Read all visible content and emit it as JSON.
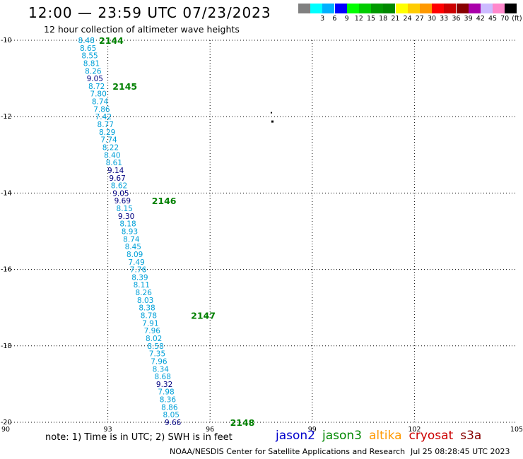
{
  "header": {
    "title": "12:00 — 23:59 UTC 07/23/2023",
    "subtitle": "12 hour collection of altimeter wave heights"
  },
  "legend": {
    "swatches": [
      {
        "color": "#808080",
        "label": ""
      },
      {
        "color": "#00ffff",
        "label": "3"
      },
      {
        "color": "#00b0ff",
        "label": "6"
      },
      {
        "color": "#0000ff",
        "label": "9"
      },
      {
        "color": "#00ff00",
        "label": "12"
      },
      {
        "color": "#00cc00",
        "label": "15"
      },
      {
        "color": "#009900",
        "label": "18"
      },
      {
        "color": "#008800",
        "label": "21"
      },
      {
        "color": "#ffff00",
        "label": "24"
      },
      {
        "color": "#ffcc00",
        "label": "27"
      },
      {
        "color": "#ff9900",
        "label": "30"
      },
      {
        "color": "#ff0000",
        "label": "33"
      },
      {
        "color": "#cc0000",
        "label": "36"
      },
      {
        "color": "#880000",
        "label": "39"
      },
      {
        "color": "#aa00aa",
        "label": "42"
      },
      {
        "color": "#ccbbff",
        "label": "45"
      },
      {
        "color": "#ff88cc",
        "label": "70"
      },
      {
        "color": "#000000",
        "label": "(ft)"
      }
    ]
  },
  "map": {
    "lon_range": [
      90,
      105
    ],
    "lat_range": [
      -20,
      -10
    ],
    "x_ticks": [
      "90",
      "93",
      "96",
      "99",
      "102",
      "105"
    ],
    "y_ticks": [
      {
        "lat": -10,
        "label": "-10"
      },
      {
        "lat": -12,
        "label": "-12"
      },
      {
        "lat": -14,
        "label": "-14"
      },
      {
        "lat": -16,
        "label": "-16"
      },
      {
        "lat": -18,
        "label": "-18"
      },
      {
        "lat": -20,
        "label": "-20"
      }
    ],
    "color_light": "#00a0d8",
    "color_dark": "#000080",
    "color_time": "#008000",
    "swh_readings": [
      {
        "lon": 92.37,
        "lat": -10.0,
        "swh": "8.48",
        "dark": false
      },
      {
        "lon": 92.42,
        "lat": -10.2,
        "swh": "8.65",
        "dark": false
      },
      {
        "lon": 92.47,
        "lat": -10.4,
        "swh": "8.55",
        "dark": false
      },
      {
        "lon": 92.52,
        "lat": -10.6,
        "swh": "8.81",
        "dark": false
      },
      {
        "lon": 92.57,
        "lat": -10.8,
        "swh": "8.26",
        "dark": false
      },
      {
        "lon": 92.62,
        "lat": -11.0,
        "swh": "9.05",
        "dark": true
      },
      {
        "lon": 92.67,
        "lat": -11.2,
        "swh": "8.72",
        "dark": false
      },
      {
        "lon": 92.72,
        "lat": -11.4,
        "swh": "7.80",
        "dark": false
      },
      {
        "lon": 92.77,
        "lat": -11.6,
        "swh": "8.74",
        "dark": false
      },
      {
        "lon": 92.82,
        "lat": -11.8,
        "swh": "7.86",
        "dark": false
      },
      {
        "lon": 92.87,
        "lat": -12.0,
        "swh": "7.42",
        "dark": false
      },
      {
        "lon": 92.93,
        "lat": -12.2,
        "swh": "8.77",
        "dark": false
      },
      {
        "lon": 92.98,
        "lat": -12.4,
        "swh": "8.29",
        "dark": false
      },
      {
        "lon": 93.03,
        "lat": -12.6,
        "swh": "7.74",
        "dark": false
      },
      {
        "lon": 93.08,
        "lat": -12.8,
        "swh": "8.22",
        "dark": false
      },
      {
        "lon": 93.13,
        "lat": -13.0,
        "swh": "8.40",
        "dark": false
      },
      {
        "lon": 93.18,
        "lat": -13.2,
        "swh": "8.61",
        "dark": false
      },
      {
        "lon": 93.23,
        "lat": -13.4,
        "swh": "9.14",
        "dark": true
      },
      {
        "lon": 93.28,
        "lat": -13.6,
        "swh": "9.67",
        "dark": true
      },
      {
        "lon": 93.33,
        "lat": -13.8,
        "swh": "8.62",
        "dark": false
      },
      {
        "lon": 93.38,
        "lat": -14.0,
        "swh": "9.05",
        "dark": true
      },
      {
        "lon": 93.43,
        "lat": -14.2,
        "swh": "9.69",
        "dark": true
      },
      {
        "lon": 93.49,
        "lat": -14.4,
        "swh": "8.15",
        "dark": false
      },
      {
        "lon": 93.54,
        "lat": -14.6,
        "swh": "9.30",
        "dark": true
      },
      {
        "lon": 93.59,
        "lat": -14.8,
        "swh": "8.18",
        "dark": false
      },
      {
        "lon": 93.64,
        "lat": -15.0,
        "swh": "8.93",
        "dark": false
      },
      {
        "lon": 93.69,
        "lat": -15.2,
        "swh": "8.74",
        "dark": false
      },
      {
        "lon": 93.74,
        "lat": -15.4,
        "swh": "8.45",
        "dark": false
      },
      {
        "lon": 93.79,
        "lat": -15.6,
        "swh": "8.09",
        "dark": false
      },
      {
        "lon": 93.84,
        "lat": -15.8,
        "swh": "7.49",
        "dark": false
      },
      {
        "lon": 93.89,
        "lat": -16.0,
        "swh": "7.76",
        "dark": false
      },
      {
        "lon": 93.94,
        "lat": -16.2,
        "swh": "8.39",
        "dark": false
      },
      {
        "lon": 93.99,
        "lat": -16.4,
        "swh": "8.11",
        "dark": false
      },
      {
        "lon": 94.05,
        "lat": -16.6,
        "swh": "8.26",
        "dark": false
      },
      {
        "lon": 94.1,
        "lat": -16.8,
        "swh": "8.03",
        "dark": false
      },
      {
        "lon": 94.15,
        "lat": -17.0,
        "swh": "8.38",
        "dark": false
      },
      {
        "lon": 94.2,
        "lat": -17.2,
        "swh": "8.78",
        "dark": false
      },
      {
        "lon": 94.25,
        "lat": -17.4,
        "swh": "7.91",
        "dark": false
      },
      {
        "lon": 94.3,
        "lat": -17.6,
        "swh": "7.96",
        "dark": false
      },
      {
        "lon": 94.35,
        "lat": -17.8,
        "swh": "8.02",
        "dark": false
      },
      {
        "lon": 94.4,
        "lat": -18.0,
        "swh": "8.58",
        "dark": false
      },
      {
        "lon": 94.45,
        "lat": -18.2,
        "swh": "7.35",
        "dark": false
      },
      {
        "lon": 94.5,
        "lat": -18.4,
        "swh": "7.96",
        "dark": false
      },
      {
        "lon": 94.55,
        "lat": -18.6,
        "swh": "8.34",
        "dark": false
      },
      {
        "lon": 94.61,
        "lat": -18.8,
        "swh": "8.68",
        "dark": false
      },
      {
        "lon": 94.66,
        "lat": -19.0,
        "swh": "9.32",
        "dark": true
      },
      {
        "lon": 94.71,
        "lat": -19.2,
        "swh": "7.98",
        "dark": false
      },
      {
        "lon": 94.76,
        "lat": -19.4,
        "swh": "8.36",
        "dark": false
      },
      {
        "lon": 94.81,
        "lat": -19.6,
        "swh": "8.86",
        "dark": false
      },
      {
        "lon": 94.86,
        "lat": -19.8,
        "swh": "8.05",
        "dark": false
      },
      {
        "lon": 94.91,
        "lat": -20.0,
        "swh": "9.66",
        "dark": true
      }
    ],
    "time_labels": [
      {
        "lon": 93.1,
        "lat": -10.0,
        "label": "2144"
      },
      {
        "lon": 93.5,
        "lat": -11.2,
        "label": "2145"
      },
      {
        "lon": 94.65,
        "lat": -14.2,
        "label": "2146"
      },
      {
        "lon": 95.8,
        "lat": -17.2,
        "label": "2147"
      },
      {
        "lon": 96.95,
        "lat": -20.0,
        "label": "2148"
      }
    ]
  },
  "footer": {
    "note": "note: 1) Time is in UTC; 2) SWH is in feet",
    "satellites": [
      {
        "name": "jason2",
        "color": "#0000cc"
      },
      {
        "name": "jason3",
        "color": "#008800"
      },
      {
        "name": "altika",
        "color": "#ff9900"
      },
      {
        "name": "cryosat",
        "color": "#cc0000"
      },
      {
        "name": "s3a",
        "color": "#880000"
      }
    ],
    "credit": "NOAA/NESDIS Center for Satellite Applications and Research",
    "timestamp": "Jul 25 08:28:45 UTC 2023"
  }
}
